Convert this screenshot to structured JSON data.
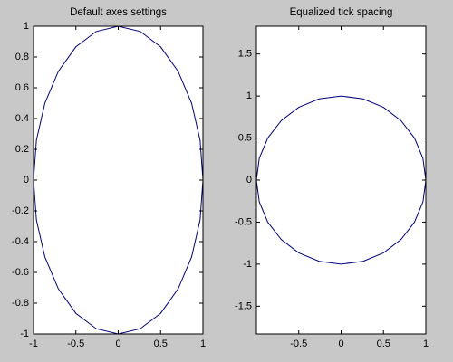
{
  "chart_data": [
    {
      "type": "line",
      "title": "Default axes settings",
      "color": "#000080",
      "x": [
        1,
        0.966,
        0.866,
        0.707,
        0.5,
        0.259,
        0,
        -0.259,
        -0.5,
        -0.707,
        -0.866,
        -0.966,
        -1,
        -0.966,
        -0.866,
        -0.707,
        -0.5,
        -0.259,
        0,
        0.259,
        0.5,
        0.707,
        0.866,
        0.966,
        1
      ],
      "values": [
        0,
        0.259,
        0.5,
        0.707,
        0.866,
        0.966,
        1,
        0.966,
        0.866,
        0.707,
        0.5,
        0.259,
        0,
        -0.259,
        -0.5,
        -0.707,
        -0.866,
        -0.966,
        -1,
        -0.966,
        -0.866,
        -0.707,
        -0.5,
        -0.259,
        0
      ],
      "xlim": [
        -1,
        1
      ],
      "ylim": [
        -1,
        1
      ],
      "xticks": [
        -1,
        -0.5,
        0,
        0.5,
        1
      ],
      "yticks": [
        -1,
        -0.8,
        -0.6,
        -0.4,
        -0.2,
        0,
        0.2,
        0.4,
        0.6,
        0.8,
        1
      ]
    },
    {
      "type": "line",
      "title": "Equalized tick spacing",
      "color": "#000080",
      "x": [
        1,
        0.966,
        0.866,
        0.707,
        0.5,
        0.259,
        0,
        -0.259,
        -0.5,
        -0.707,
        -0.866,
        -0.966,
        -1,
        -0.966,
        -0.866,
        -0.707,
        -0.5,
        -0.259,
        0,
        0.259,
        0.5,
        0.707,
        0.866,
        0.966,
        1
      ],
      "values": [
        0,
        0.259,
        0.5,
        0.707,
        0.866,
        0.966,
        1,
        0.966,
        0.866,
        0.707,
        0.5,
        0.259,
        0,
        -0.259,
        -0.5,
        -0.707,
        -0.866,
        -0.966,
        -1,
        -0.966,
        -0.866,
        -0.707,
        -0.5,
        -0.259,
        0
      ],
      "xlim": [
        -1,
        1
      ],
      "ylim": [
        -1.83,
        1.83
      ],
      "xticks": [
        -0.5,
        0,
        0.5,
        1
      ],
      "yticks": [
        -1.5,
        -1,
        -0.5,
        0,
        0.5,
        1,
        1.5
      ]
    }
  ]
}
